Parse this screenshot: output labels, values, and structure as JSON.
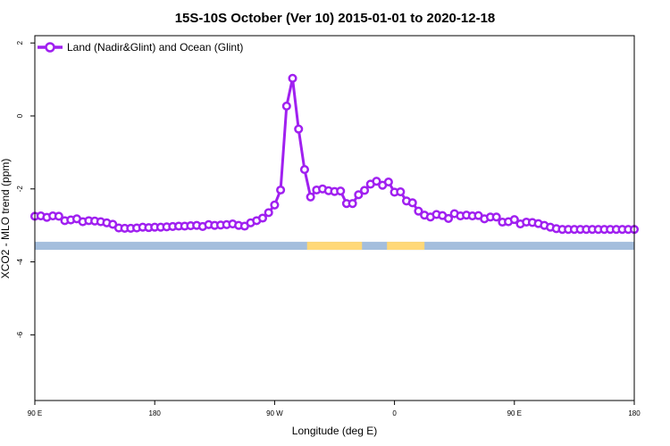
{
  "chart_data": {
    "type": "line",
    "title": "15S-10S October (Ver 10)   2015-01-01 to 2020-12-18",
    "xlabel": "Longitude (deg E)",
    "ylabel": "XCO2 - MLO trend (ppm)",
    "xlim": [
      90,
      450
    ],
    "ylim": [
      -7.8,
      2.2
    ],
    "x_ticks": [
      90,
      162,
      234,
      306,
      378,
      450
    ],
    "x_tick_labels": [
      "90 E",
      "180",
      "90 W",
      "0",
      "90 E",
      "180"
    ],
    "y_ticks": [
      2,
      0,
      -2,
      -4,
      -6
    ],
    "y_tick_labels": [
      "2",
      "0",
      "-2",
      "-4",
      "-6"
    ],
    "grid": false,
    "legend_position": "top-left",
    "series": [
      {
        "name": "Land (Nadir&Glint) and Ocean (Glint)",
        "color": "#a020f0",
        "marker": "open-circle",
        "x": [
          90.0,
          93.6,
          97.2,
          100.8,
          104.4,
          108.0,
          111.6,
          115.2,
          118.8,
          122.4,
          126.0,
          129.6,
          133.2,
          136.8,
          140.4,
          144.0,
          147.6,
          151.2,
          154.8,
          158.4,
          162.0,
          165.6,
          169.2,
          172.8,
          176.4,
          180.0,
          183.6,
          187.2,
          190.8,
          194.4,
          198.0,
          201.6,
          205.2,
          208.8,
          212.4,
          216.0,
          219.6,
          223.2,
          226.8,
          230.4,
          234.0,
          237.6,
          241.2,
          244.8,
          248.4,
          252.0,
          255.6,
          259.2,
          262.8,
          266.4,
          270.0,
          273.6,
          277.2,
          280.8,
          284.4,
          288.0,
          291.6,
          295.2,
          298.8,
          302.4,
          306.0,
          309.6,
          313.2,
          316.8,
          320.4,
          324.0,
          327.6,
          331.2,
          334.8,
          338.4,
          342.0,
          345.6,
          349.2,
          352.8,
          356.4,
          360.0,
          363.6,
          367.2,
          370.8,
          374.4,
          378.0,
          381.6,
          385.2,
          388.8,
          392.4,
          396.0,
          399.6,
          403.2,
          406.8,
          410.4,
          414.0,
          417.6,
          421.2,
          424.8,
          428.4,
          432.0,
          435.6,
          439.2,
          442.8,
          446.4,
          450.0
        ],
        "y": [
          -2.75,
          -2.74,
          -2.78,
          -2.74,
          -2.75,
          -2.87,
          -2.85,
          -2.82,
          -2.9,
          -2.87,
          -2.88,
          -2.9,
          -2.93,
          -2.97,
          -3.07,
          -3.08,
          -3.08,
          -3.07,
          -3.05,
          -3.06,
          -3.05,
          -3.05,
          -3.04,
          -3.03,
          -3.02,
          -3.02,
          -3.01,
          -3.0,
          -3.03,
          -2.98,
          -3.0,
          -2.99,
          -2.98,
          -2.96,
          -3.0,
          -3.02,
          -2.93,
          -2.87,
          -2.8,
          -2.65,
          -2.44,
          -2.03,
          0.27,
          1.03,
          -0.36,
          -1.47,
          -2.22,
          -2.03,
          -2.0,
          -2.05,
          -2.07,
          -2.06,
          -2.4,
          -2.4,
          -2.16,
          -2.04,
          -1.87,
          -1.79,
          -1.9,
          -1.81,
          -2.09,
          -2.08,
          -2.33,
          -2.38,
          -2.61,
          -2.72,
          -2.77,
          -2.7,
          -2.73,
          -2.81,
          -2.68,
          -2.74,
          -2.72,
          -2.74,
          -2.73,
          -2.82,
          -2.77,
          -2.77,
          -2.91,
          -2.9,
          -2.84,
          -2.96,
          -2.91,
          -2.92,
          -2.95,
          -3.0,
          -3.05,
          -3.09,
          -3.11,
          -3.11,
          -3.11,
          -3.11,
          -3.11,
          -3.11,
          -3.11,
          -3.11,
          -3.11,
          -3.11,
          -3.11,
          -3.11,
          -3.11
        ]
      }
    ],
    "surface_strip": {
      "y_range": [
        -3.45,
        -3.67
      ],
      "ocean_color": "#a4bedd",
      "land_color": "#ffd878",
      "land_segments": [
        [
          253.5,
          286.5
        ],
        [
          301.5,
          324.0
        ]
      ]
    }
  }
}
